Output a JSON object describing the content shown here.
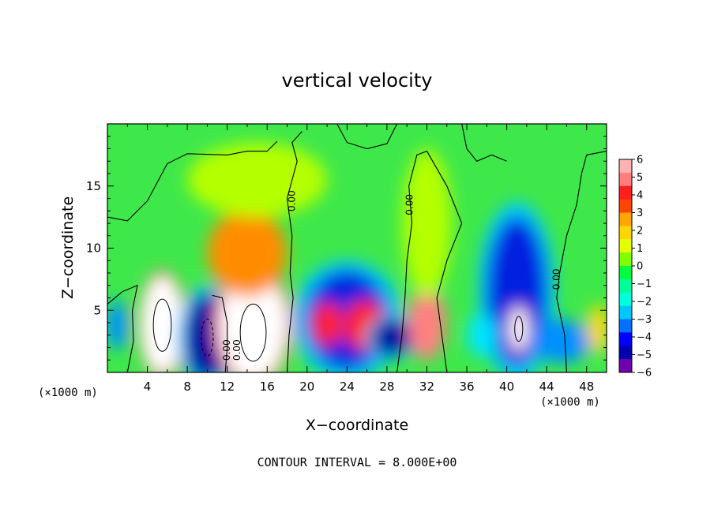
{
  "chart_data": {
    "type": "heatmap",
    "title": "vertical velocity",
    "xlabel": "X−coordinate",
    "ylabel": "Z−coordinate",
    "x_unit": "(×1000 m)",
    "z_unit": "(×1000 m)",
    "xlim": [
      0,
      50
    ],
    "ylim": [
      0,
      20
    ],
    "x_ticks": [
      4,
      8,
      12,
      16,
      20,
      24,
      28,
      32,
      36,
      40,
      44,
      48
    ],
    "y_ticks": [
      5,
      10,
      15
    ],
    "contour_interval_note": "CONTOUR INTERVAL = 8.000E+00",
    "contour_labels": [
      "0.00",
      "0.00",
      "0.00",
      "0.00",
      "0.00"
    ],
    "colorbar": {
      "ticks": [
        6,
        5,
        4,
        3,
        2,
        1,
        0,
        -1,
        -2,
        -3,
        -4,
        -5,
        -6
      ],
      "tick_labels": [
        "6",
        "5",
        "4",
        "3",
        "2",
        "1",
        "0",
        "−1",
        "−2",
        "−3",
        "−4",
        "−5",
        "−6"
      ],
      "colors": [
        "#ffb2b2",
        "#ff7f7f",
        "#ff1f1f",
        "#ff4500",
        "#ffa500",
        "#ffd700",
        "#e6ff00",
        "#7fff00",
        "#00ff40",
        "#00ff99",
        "#00ffdd",
        "#00c8ff",
        "#0070ff",
        "#0000ff",
        "#0000b0",
        "#7000b0"
      ]
    },
    "features": [
      {
        "x": 5.5,
        "z": 3.8,
        "w": 4.2,
        "h": 8.0,
        "value": 6
      },
      {
        "x": 10.0,
        "z": 2.8,
        "w": 4.6,
        "h": 7.0,
        "value": -5
      },
      {
        "x": 14.6,
        "z": 3.8,
        "w": 6.8,
        "h": 9.0,
        "value": 6
      },
      {
        "x": 14.0,
        "z": 9.6,
        "w": 8.0,
        "h": 7.0,
        "value": 3
      },
      {
        "x": 24.0,
        "z": 4.2,
        "w": 8.5,
        "h": 8.0,
        "value": -4
      },
      {
        "x": 25.8,
        "z": 3.8,
        "w": 4.2,
        "h": 4.0,
        "value": 4
      },
      {
        "x": 22.0,
        "z": 3.9,
        "w": 3.0,
        "h": 3.5,
        "value": 4
      },
      {
        "x": 28.5,
        "z": 2.8,
        "w": 4.0,
        "h": 3.0,
        "value": -5
      },
      {
        "x": 32.0,
        "z": 4.0,
        "w": 3.8,
        "h": 6.0,
        "value": 5
      },
      {
        "x": 32.0,
        "z": 12.0,
        "w": 5.0,
        "h": 12.0,
        "value": 1
      },
      {
        "x": 41.0,
        "z": 6.5,
        "w": 6.0,
        "h": 12.0,
        "value": -4
      },
      {
        "x": 41.2,
        "z": 3.5,
        "w": 1.8,
        "h": 3.5,
        "value": 6
      },
      {
        "x": 45.5,
        "z": 2.5,
        "w": 6.0,
        "h": 3.5,
        "value": -3
      },
      {
        "x": 49.2,
        "z": 3.5,
        "w": 2.2,
        "h": 4.0,
        "value": 2
      },
      {
        "x": 1.0,
        "z": 3.8,
        "w": 2.2,
        "h": 4.0,
        "value": -3
      },
      {
        "x": 37.5,
        "z": 3.0,
        "w": 3.0,
        "h": 3.5,
        "value": -2
      },
      {
        "x": 15.0,
        "z": 15.5,
        "w": 14.0,
        "h": 6.0,
        "value": 0.8
      }
    ]
  }
}
